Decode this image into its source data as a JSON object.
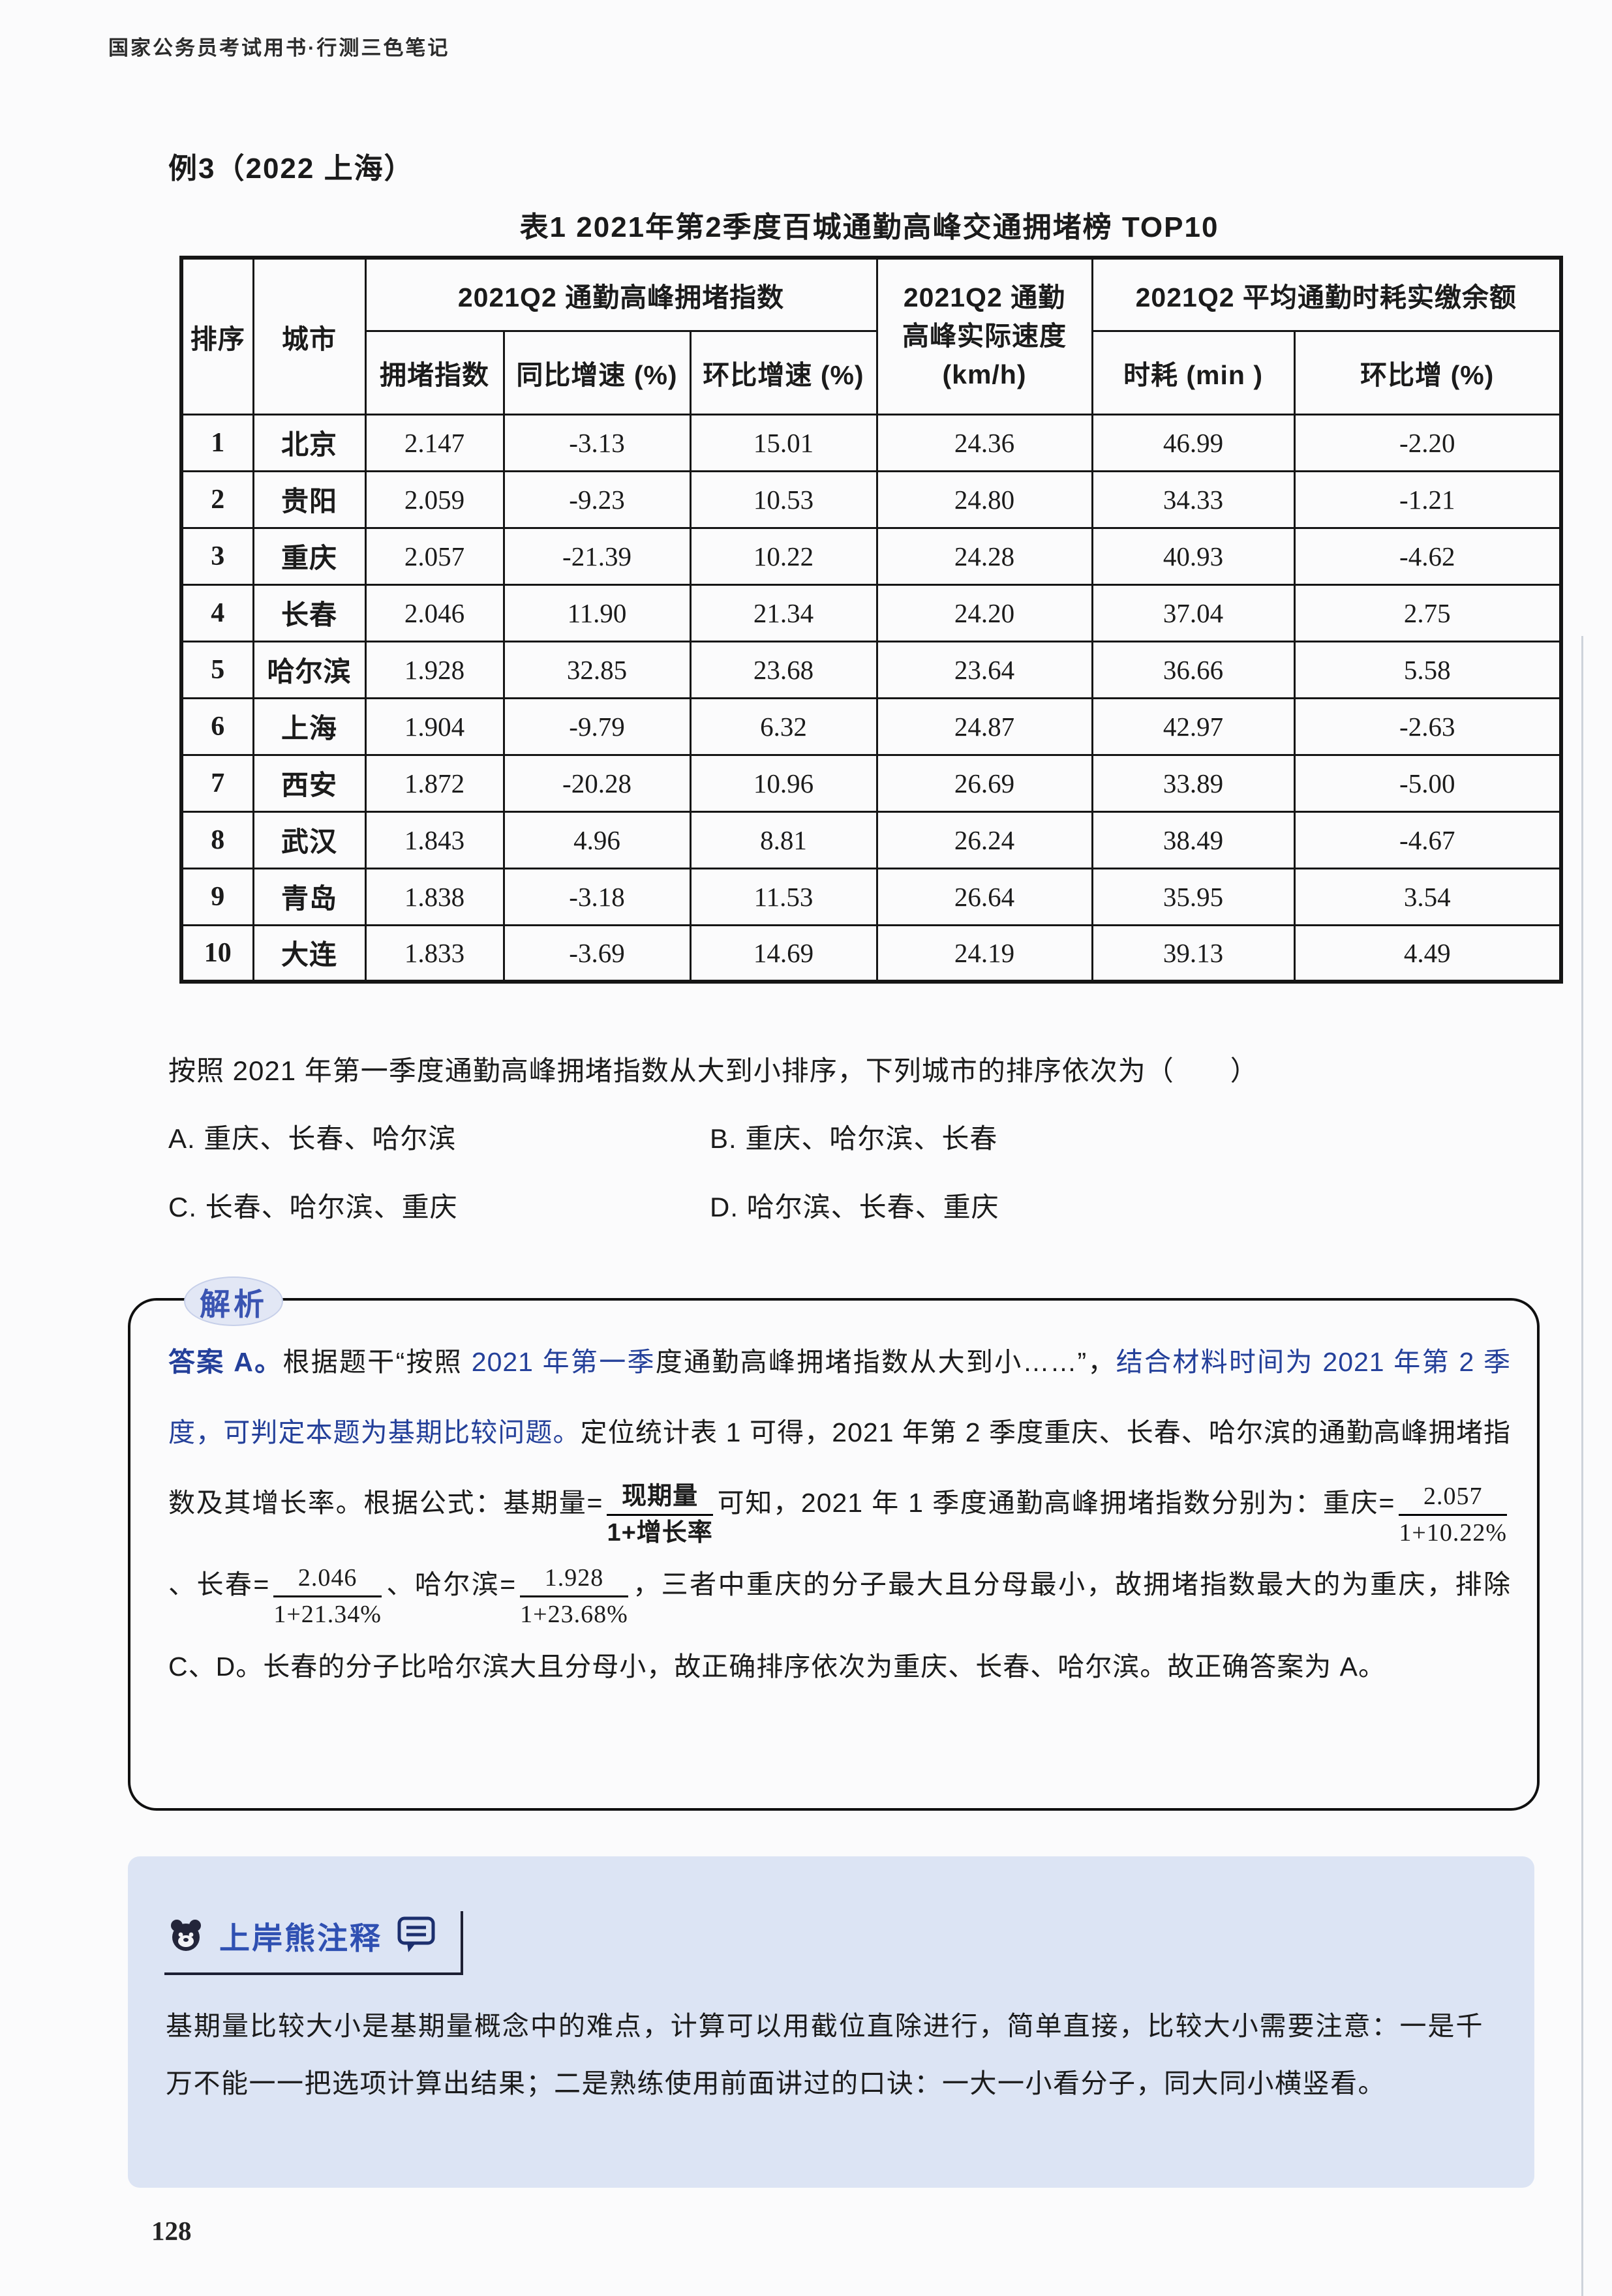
{
  "page": {
    "running_header": "国家公务员考试用书·行测三色笔记",
    "page_number": "128"
  },
  "example": {
    "label": "例3（2022 上海）"
  },
  "table": {
    "title": "表1 2021年第2季度百城通勤高峰交通拥堵榜 TOP10",
    "header": {
      "rank": "排序",
      "city": "城市",
      "group_congestion": "2021Q2 通勤高峰拥堵指数",
      "speed": "2021Q2 通勤\n高峰实际速度\n(km/h)",
      "group_time": "2021Q2 平均通勤时耗实缴余额",
      "sub_headers": [
        "拥堵指数",
        "同比增速 (%)",
        "环比增速 (%)",
        "时耗 (min )",
        "环比增 (%)"
      ]
    },
    "rows": [
      [
        "1",
        "北京",
        "2.147",
        "-3.13",
        "15.01",
        "24.36",
        "46.99",
        "-2.20"
      ],
      [
        "2",
        "贵阳",
        "2.059",
        "-9.23",
        "10.53",
        "24.80",
        "34.33",
        "-1.21"
      ],
      [
        "3",
        "重庆",
        "2.057",
        "-21.39",
        "10.22",
        "24.28",
        "40.93",
        "-4.62"
      ],
      [
        "4",
        "长春",
        "2.046",
        "11.90",
        "21.34",
        "24.20",
        "37.04",
        "2.75"
      ],
      [
        "5",
        "哈尔滨",
        "1.928",
        "32.85",
        "23.68",
        "23.64",
        "36.66",
        "5.58"
      ],
      [
        "6",
        "上海",
        "1.904",
        "-9.79",
        "6.32",
        "24.87",
        "42.97",
        "-2.63"
      ],
      [
        "7",
        "西安",
        "1.872",
        "-20.28",
        "10.96",
        "26.69",
        "33.89",
        "-5.00"
      ],
      [
        "8",
        "武汉",
        "1.843",
        "4.96",
        "8.81",
        "26.24",
        "38.49",
        "-4.67"
      ],
      [
        "9",
        "青岛",
        "1.838",
        "-3.18",
        "11.53",
        "26.64",
        "35.95",
        "3.54"
      ],
      [
        "10",
        "大连",
        "1.833",
        "-3.69",
        "14.69",
        "24.19",
        "39.13",
        "4.49"
      ]
    ]
  },
  "question": {
    "stem": "按照 2021 年第一季度通勤高峰拥堵指数从大到小排序，下列城市的排序依次为（　　）",
    "options": [
      "A. 重庆、长春、哈尔滨",
      "B. 重庆、哈尔滨、长春",
      "C. 长春、哈尔滨、重庆",
      "D. 哈尔滨、长春、重庆"
    ]
  },
  "analysis": {
    "badge": "解析",
    "answer_label": "答案 A。",
    "seg_black_1": "根据题干“按照 ",
    "seg_blue_1": "2021 年第一季",
    "seg_black_2": "度通勤高峰拥堵指数从大到小……”，",
    "seg_blue_2": "结合材料时间为 2021 年第 2 季度，可判定本题为基期比较问题。",
    "seg_black_3": "定位统计表 1 可得，2021 年第 2 季度重庆、长春、哈尔滨的通勤高峰拥堵指数及其增长率。根据公式：基期量=",
    "formula_frac": {
      "num": "现期量",
      "den": "1+增长率"
    },
    "seg_black_4": "可知，2021 年 1 季度通勤高峰拥堵指数分别为：重庆=",
    "frac_chongqing": {
      "num": "2.057",
      "den": "1+10.22%"
    },
    "seg_black_5": "、长春=",
    "frac_changchun": {
      "num": "2.046",
      "den": "1+21.34%"
    },
    "seg_black_6": "、哈尔滨=",
    "frac_haerbin": {
      "num": "1.928",
      "den": "1+23.68%"
    },
    "seg_black_7": "，三者中重庆的分子最大且分母最小，故拥堵指数最大的为重庆，排除 C、D。长春的分子比哈尔滨大且分母小，故正确排序依次为重庆、长春、哈尔滨。故正确答案为 A。"
  },
  "note": {
    "header": "上岸熊注释",
    "text": "基期量比较大小是基期量概念中的难点，计算可以用截位直除进行，简单直接，比较大小需要注意：一是千万不能一一把选项计算出结果；二是熟练使用前面讲过的口诀：一大一小看分子，同大同小横竖看。"
  },
  "colors": {
    "emphasis_blue": "#24409a",
    "badge_blue": "#3a54b2",
    "note_header_blue": "#2f50b2",
    "note_background": "#dce4f4",
    "badge_background": "#e2e7f5",
    "table_border": "#161616"
  }
}
